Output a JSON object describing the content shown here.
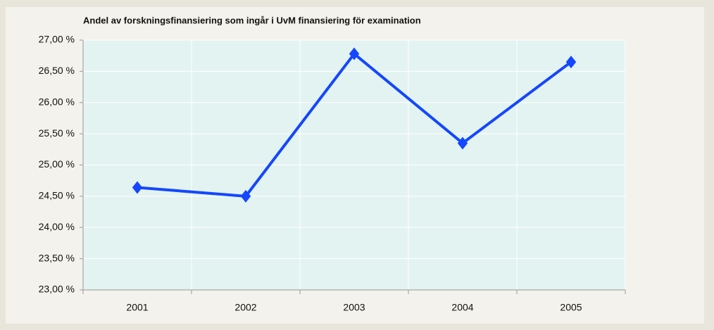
{
  "chart_data": {
    "type": "line",
    "title": "Andel av forskningsfinansiering som ingår i UvM finansiering för examination",
    "categories": [
      "2001",
      "2002",
      "2003",
      "2004",
      "2005"
    ],
    "series": [
      {
        "name": "Andel",
        "color": "#1447ff",
        "values": [
          24.64,
          24.5,
          26.78,
          25.35,
          26.65
        ]
      }
    ],
    "ylim": [
      23,
      27
    ],
    "yticks": [
      {
        "value": 23,
        "label": "23,00 %"
      },
      {
        "value": 23.5,
        "label": "23,50 %"
      },
      {
        "value": 24,
        "label": "24,00 %"
      },
      {
        "value": 24.5,
        "label": "24,50 %"
      },
      {
        "value": 25,
        "label": "25,00 %"
      },
      {
        "value": 25.5,
        "label": "25,50 %"
      },
      {
        "value": 26,
        "label": "26,00 %"
      },
      {
        "value": 26.5,
        "label": "26,50 %"
      },
      {
        "value": 27,
        "label": "27,00 %"
      }
    ],
    "grid": true
  }
}
